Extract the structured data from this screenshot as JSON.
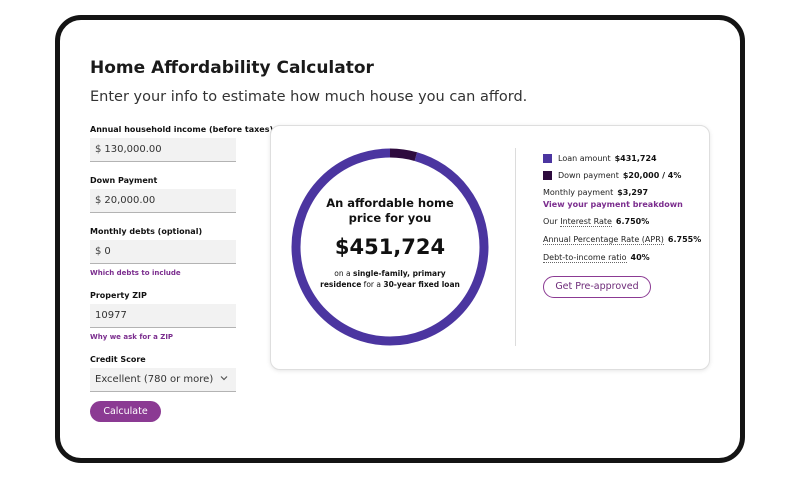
{
  "header": {
    "title": "Home Affordability Calculator",
    "subtitle": "Enter your info to estimate how much house you can afford."
  },
  "form": {
    "income": {
      "label": "Annual household income (before taxes)",
      "prefix": "$",
      "value": "130,000.00"
    },
    "down_payment": {
      "label": "Down Payment",
      "prefix": "$",
      "value": "20,000.00"
    },
    "monthly_debts": {
      "label": "Monthly debts (optional)",
      "prefix": "$",
      "value": "0",
      "help_link": "Which debts to include"
    },
    "zip": {
      "label": "Property ZIP",
      "value": "10977",
      "help_link": "Why we ask for a ZIP"
    },
    "credit_score": {
      "label": "Credit Score",
      "value": "Excellent (780 or more)"
    },
    "calculate_label": "Calculate"
  },
  "result": {
    "heading_line1": "An affordable home",
    "heading_line2": "price for you",
    "price": "$451,724",
    "note_1": "on a ",
    "note_2": "single-family, primary",
    "note_3": "residence",
    "note_4": " for a ",
    "note_5": "30-year fixed loan",
    "donut": {
      "loan_fraction": 0.9557,
      "down_fraction": 0.0443,
      "loan_color": "#4b35a0",
      "down_color": "#2e0b3e"
    }
  },
  "summary": {
    "loan_label": "Loan amount",
    "loan_value": "$431,724",
    "down_label": "Down payment",
    "down_value": "$20,000 / 4%",
    "monthly_label": "Monthly payment",
    "monthly_value": "$3,297",
    "breakdown_link": "View your payment breakdown",
    "rate_label_a": "Our ",
    "rate_label_b": "Interest Rate",
    "rate_value": "6.750%",
    "apr_label": "Annual Percentage Rate (APR)",
    "apr_value": "6.755%",
    "dti_label": "Debt-to-income ratio",
    "dti_value": "40%",
    "preapproved_label": "Get Pre-approved"
  },
  "colors": {
    "accent": "#8b3a93",
    "link": "#7b2d8e",
    "loan": "#4b35a0",
    "down": "#2e0b3e"
  },
  "icons": {
    "select_chevron": "chevron-down-icon"
  }
}
